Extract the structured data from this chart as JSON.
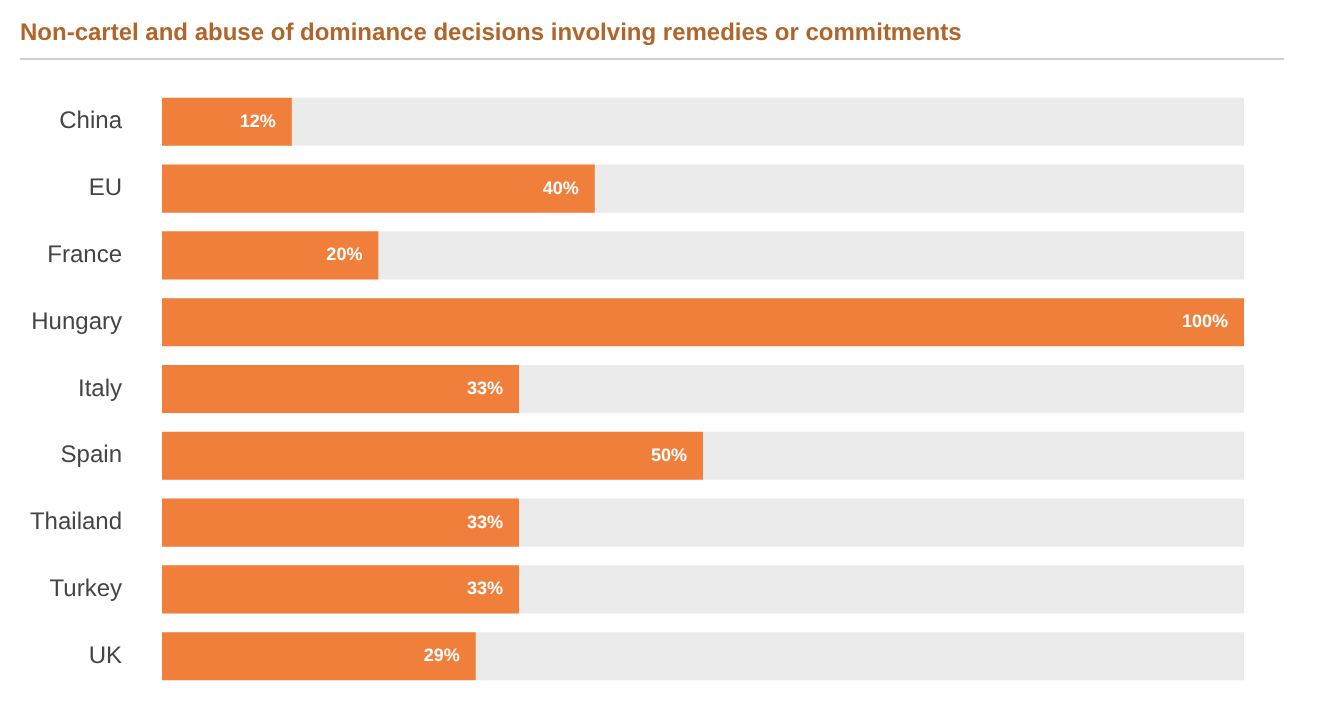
{
  "chart_data": {
    "type": "bar",
    "orientation": "horizontal",
    "stacked": true,
    "title": "Non-cartel and abuse of dominance decisions involving remedies or commitments",
    "categories": [
      "China",
      "EU",
      "France",
      "Hungary",
      "Italy",
      "Spain",
      "Thailand",
      "Turkey",
      "UK"
    ],
    "series": [
      {
        "color": "#ef7f3a",
        "values": [
          12,
          40,
          20,
          100,
          33,
          50,
          33,
          33,
          29
        ],
        "value_labels": [
          "12%",
          "40%",
          "20%",
          "100%",
          "33%",
          "50%",
          "33%",
          "33%",
          "29%"
        ]
      },
      {
        "color": "#ebebeb",
        "values": [
          88,
          60,
          80,
          0,
          67,
          50,
          67,
          67,
          71
        ]
      }
    ],
    "xlim": [
      0,
      100
    ],
    "tick_labels": "y",
    "legend": false
  }
}
